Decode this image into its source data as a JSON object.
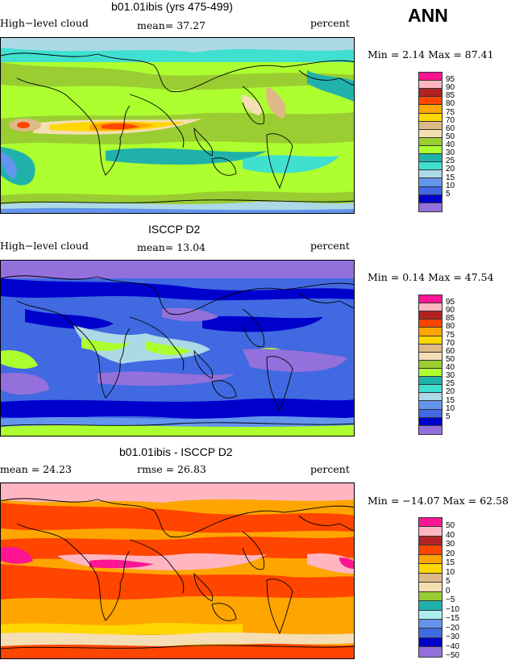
{
  "season": "ANN",
  "panels": [
    {
      "title": "b01.01ibis (yrs 475-499)",
      "left": "High−level cloud",
      "middle": "mean=  37.27",
      "right": "percent",
      "minmax": "Min =    2.14 Max =  87.41",
      "colorbar": {
        "labels": [
          "95",
          "90",
          "85",
          "80",
          "75",
          "70",
          "60",
          "50",
          "40",
          "30",
          "25",
          "20",
          "15",
          "10",
          "5"
        ],
        "colors": [
          "#ff1493",
          "#ffb6c1",
          "#b22222",
          "#ff4500",
          "#ffa500",
          "#ffd700",
          "#deb887",
          "#f5deb3",
          "#9acd32",
          "#adff2f",
          "#20b2aa",
          "#40e0d0",
          "#add8e6",
          "#6495ed",
          "#4169e1",
          "#0000cd",
          "#9370db"
        ]
      }
    },
    {
      "title": "ISCCP D2",
      "left": "High−level cloud",
      "middle": "mean=  13.04",
      "right": "percent",
      "minmax": "Min =    0.14 Max =  47.54",
      "colorbar": {
        "labels": [
          "95",
          "90",
          "85",
          "80",
          "75",
          "70",
          "60",
          "50",
          "40",
          "30",
          "25",
          "20",
          "15",
          "10",
          "5"
        ],
        "colors": [
          "#ff1493",
          "#ffb6c1",
          "#b22222",
          "#ff4500",
          "#ffa500",
          "#ffd700",
          "#deb887",
          "#f5deb3",
          "#9acd32",
          "#adff2f",
          "#20b2aa",
          "#40e0d0",
          "#add8e6",
          "#6495ed",
          "#4169e1",
          "#0000cd",
          "#9370db"
        ]
      }
    },
    {
      "title": "b01.01ibis - ISCCP D2",
      "left": "mean =  24.23",
      "middle": "rmse =  26.83",
      "right": "percent",
      "minmax": "Min = −14.07 Max =  62.58",
      "colorbar": {
        "labels": [
          "50",
          "40",
          "30",
          "20",
          "15",
          "10",
          "5",
          "0",
          "−5",
          "−10",
          "−15",
          "−20",
          "−30",
          "−40",
          "−50"
        ],
        "colors": [
          "#ff1493",
          "#ffb6c1",
          "#b22222",
          "#ff4500",
          "#ffa500",
          "#ffd700",
          "#deb887",
          "#f5deb3",
          "#9acd32",
          "#20b2aa",
          "#afeeee",
          "#6495ed",
          "#4169e1",
          "#0000cd",
          "#9370db"
        ]
      }
    }
  ]
}
